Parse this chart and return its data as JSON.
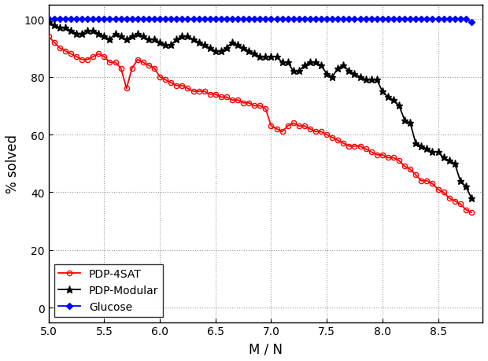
{
  "title": "",
  "xlabel": "M / N",
  "ylabel": "% solved",
  "xlim": [
    5.0,
    8.9
  ],
  "ylim": [
    -5,
    105
  ],
  "yticks": [
    0,
    20,
    40,
    60,
    80,
    100
  ],
  "xticks": [
    5.0,
    5.5,
    6.0,
    6.5,
    7.0,
    7.5,
    8.0,
    8.5
  ],
  "glucose_x": [
    5.0,
    5.05,
    5.1,
    5.15,
    5.2,
    5.25,
    5.3,
    5.35,
    5.4,
    5.45,
    5.5,
    5.55,
    5.6,
    5.65,
    5.7,
    5.75,
    5.8,
    5.85,
    5.9,
    5.95,
    6.0,
    6.05,
    6.1,
    6.15,
    6.2,
    6.25,
    6.3,
    6.35,
    6.4,
    6.45,
    6.5,
    6.55,
    6.6,
    6.65,
    6.7,
    6.75,
    6.8,
    6.85,
    6.9,
    6.95,
    7.0,
    7.05,
    7.1,
    7.15,
    7.2,
    7.25,
    7.3,
    7.35,
    7.4,
    7.45,
    7.5,
    7.55,
    7.6,
    7.65,
    7.7,
    7.75,
    7.8,
    7.85,
    7.9,
    7.95,
    8.0,
    8.05,
    8.1,
    8.15,
    8.2,
    8.25,
    8.3,
    8.35,
    8.4,
    8.45,
    8.5,
    8.55,
    8.6,
    8.65,
    8.7,
    8.75,
    8.8
  ],
  "glucose_y": [
    100,
    100,
    100,
    100,
    100,
    100,
    100,
    100,
    100,
    100,
    100,
    100,
    100,
    100,
    100,
    100,
    100,
    100,
    100,
    100,
    100,
    100,
    100,
    100,
    100,
    100,
    100,
    100,
    100,
    100,
    100,
    100,
    100,
    100,
    100,
    100,
    100,
    100,
    100,
    100,
    100,
    100,
    100,
    100,
    100,
    100,
    100,
    100,
    100,
    100,
    100,
    100,
    100,
    100,
    100,
    100,
    100,
    100,
    100,
    100,
    100,
    100,
    100,
    100,
    100,
    100,
    100,
    100,
    100,
    100,
    100,
    100,
    100,
    100,
    100,
    100,
    99
  ],
  "pdp4sat_x": [
    5.0,
    5.05,
    5.1,
    5.15,
    5.2,
    5.25,
    5.3,
    5.35,
    5.4,
    5.45,
    5.5,
    5.55,
    5.6,
    5.65,
    5.7,
    5.75,
    5.8,
    5.85,
    5.9,
    5.95,
    6.0,
    6.05,
    6.1,
    6.15,
    6.2,
    6.25,
    6.3,
    6.35,
    6.4,
    6.45,
    6.5,
    6.55,
    6.6,
    6.65,
    6.7,
    6.75,
    6.8,
    6.85,
    6.9,
    6.95,
    7.0,
    7.05,
    7.1,
    7.15,
    7.2,
    7.25,
    7.3,
    7.35,
    7.4,
    7.45,
    7.5,
    7.55,
    7.6,
    7.65,
    7.7,
    7.75,
    7.8,
    7.85,
    7.9,
    7.95,
    8.0,
    8.05,
    8.1,
    8.15,
    8.2,
    8.25,
    8.3,
    8.35,
    8.4,
    8.45,
    8.5,
    8.55,
    8.6,
    8.65,
    8.7,
    8.75,
    8.8
  ],
  "pdp4sat_y": [
    94,
    92,
    90,
    89,
    88,
    87,
    86,
    86,
    87,
    88,
    87,
    85,
    85,
    83,
    76,
    83,
    86,
    85,
    84,
    83,
    80,
    79,
    78,
    77,
    77,
    76,
    75,
    75,
    75,
    74,
    74,
    73,
    73,
    72,
    72,
    71,
    71,
    70,
    70,
    69,
    63,
    62,
    61,
    63,
    64,
    63,
    63,
    62,
    61,
    61,
    60,
    59,
    58,
    57,
    56,
    56,
    56,
    55,
    54,
    53,
    53,
    52,
    52,
    51,
    49,
    48,
    46,
    44,
    44,
    43,
    41,
    40,
    38,
    37,
    36,
    34,
    33
  ],
  "pdpmod_x": [
    5.0,
    5.05,
    5.1,
    5.15,
    5.2,
    5.25,
    5.3,
    5.35,
    5.4,
    5.45,
    5.5,
    5.55,
    5.6,
    5.65,
    5.7,
    5.75,
    5.8,
    5.85,
    5.9,
    5.95,
    6.0,
    6.05,
    6.1,
    6.15,
    6.2,
    6.25,
    6.3,
    6.35,
    6.4,
    6.45,
    6.5,
    6.55,
    6.6,
    6.65,
    6.7,
    6.75,
    6.8,
    6.85,
    6.9,
    6.95,
    7.0,
    7.05,
    7.1,
    7.15,
    7.2,
    7.25,
    7.3,
    7.35,
    7.4,
    7.45,
    7.5,
    7.55,
    7.6,
    7.65,
    7.7,
    7.75,
    7.8,
    7.85,
    7.9,
    7.95,
    8.0,
    8.05,
    8.1,
    8.15,
    8.2,
    8.25,
    8.3,
    8.35,
    8.4,
    8.45,
    8.5,
    8.55,
    8.6,
    8.65,
    8.7,
    8.75,
    8.8
  ],
  "pdpmod_y": [
    99,
    98,
    97,
    97,
    96,
    95,
    95,
    96,
    96,
    95,
    94,
    93,
    95,
    94,
    93,
    94,
    95,
    94,
    93,
    93,
    92,
    91,
    91,
    93,
    94,
    94,
    93,
    92,
    91,
    90,
    89,
    89,
    90,
    92,
    91,
    90,
    89,
    88,
    87,
    87,
    87,
    87,
    85,
    85,
    82,
    82,
    84,
    85,
    85,
    84,
    81,
    80,
    83,
    84,
    82,
    81,
    80,
    79,
    79,
    79,
    75,
    73,
    72,
    70,
    65,
    64,
    57,
    56,
    55,
    54,
    54,
    52,
    51,
    50,
    44,
    42,
    38
  ],
  "glucose_color": "#0000ff",
  "pdp4sat_color": "#ff0000",
  "pdpmod_color": "#000000",
  "legend_loc": "lower left",
  "figsize": [
    6.2,
    4.6
  ],
  "dpi": 100
}
